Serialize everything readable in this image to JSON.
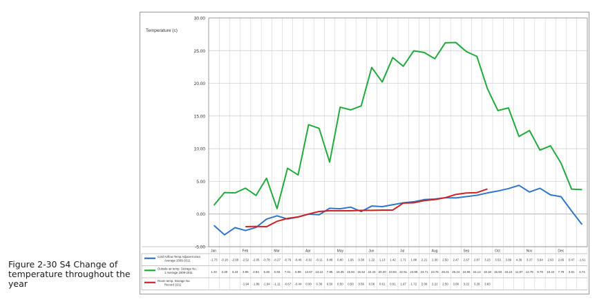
{
  "caption": "Figure 2-30 S4 Change of temperature throughout the year",
  "colors": {
    "series1": "#2e75c8",
    "series2": "#1faa3a",
    "series3": "#d21f1f",
    "grid": "#c9c9c9",
    "axis": "#8a8a8a"
  },
  "chart_data": {
    "type": "line",
    "ylabel": "Temperature (c)",
    "ylim": [
      -5,
      30
    ],
    "yticks": [
      "30.00",
      "25.00",
      "20.00",
      "15.00",
      "10.00",
      "5.00",
      "0.00",
      "-5.00"
    ],
    "grid": true,
    "legend": "table-below",
    "months": [
      "Jan",
      "Feb",
      "Mar",
      "Apr",
      "May",
      "Jun",
      "Jul",
      "Aug",
      "Sep",
      "Oct",
      "Nov",
      "Dec"
    ],
    "series": [
      {
        "name": "Cold Airflow Temp Adjacent area Average 2009-2011",
        "labels": [
          "-1.73",
          "-3.18",
          "-2.08",
          "-2.52",
          "-2.05",
          "-0.78",
          "-0.27",
          "-0.76",
          "-0.46",
          "-0.02",
          "-0.11",
          "0.88",
          "0.80",
          "1.06",
          "0.38",
          "1.22",
          "1.13",
          "1.42",
          "1.71",
          "1.88",
          "2.21",
          "2.30",
          "2.50",
          "2.47",
          "2.67",
          "2.87",
          "3.23",
          "3.53",
          "3.89",
          "4.39",
          "3.37",
          "3.94",
          "2.93",
          "2.65",
          "0.47",
          "-1.61"
        ],
        "values": [
          -1.73,
          -3.18,
          -2.08,
          -2.52,
          -2.05,
          -0.78,
          -0.27,
          -0.76,
          -0.46,
          -0.02,
          -0.11,
          0.88,
          0.8,
          1.06,
          0.38,
          1.22,
          1.13,
          1.42,
          1.71,
          1.88,
          2.21,
          2.3,
          2.5,
          2.47,
          2.67,
          2.87,
          3.23,
          3.53,
          3.89,
          4.39,
          3.37,
          3.94,
          2.93,
          2.65,
          0.47,
          -1.61
        ]
      },
      {
        "name": "Outside air temp. Storage No. 1 Average 2009-2011",
        "labels": [
          "1.34",
          "3.29",
          "3.23",
          "3.96",
          "2.84",
          "5.48",
          "0.83",
          "7.01",
          "5.98",
          "13.67",
          "13.12",
          "7.95",
          "16.35",
          "15.94",
          "16.54",
          "22.43",
          "20.20",
          "23.94",
          "22.61",
          "24.98",
          "24.71",
          "23.76",
          "26.21",
          "26.24",
          "24.86",
          "24.12",
          "19.18",
          "15.83",
          "16.24",
          "11.87",
          "12.78",
          "9.78",
          "10.44",
          "7.79",
          "3.81",
          "3.74"
        ],
        "values": [
          1.34,
          3.29,
          3.23,
          3.96,
          2.84,
          5.48,
          0.83,
          7.01,
          5.98,
          13.67,
          13.12,
          7.95,
          16.35,
          15.94,
          16.54,
          22.43,
          20.2,
          23.94,
          22.61,
          24.98,
          24.71,
          23.76,
          26.21,
          26.24,
          24.86,
          24.12,
          19.18,
          15.83,
          16.24,
          11.87,
          12.78,
          9.78,
          10.44,
          7.79,
          3.81,
          3.74
        ]
      },
      {
        "name": "Room temp. Storage No. Record 1911",
        "labels": [
          "",
          "",
          "",
          "-1.94",
          "-1.89",
          "-1.94",
          "-1.11",
          "-0.67",
          "-0.44",
          "0.00",
          "0.39",
          "0.50",
          "0.50",
          "0.50",
          "0.56",
          "0.56",
          "0.61",
          "0.61",
          "1.67",
          "1.72",
          "2.06",
          "2.22",
          "2.50",
          "3.00",
          "3.22",
          "3.28",
          "3.83",
          "",
          "",
          "",
          "",
          "",
          "",
          "",
          "",
          ""
        ],
        "values": [
          null,
          null,
          null,
          -1.94,
          -1.89,
          -1.94,
          -1.11,
          -0.67,
          -0.44,
          0.0,
          0.39,
          0.5,
          0.5,
          0.5,
          0.56,
          0.56,
          0.61,
          0.61,
          1.67,
          1.72,
          2.06,
          2.22,
          2.5,
          3.0,
          3.22,
          3.28,
          3.83,
          null,
          null,
          null,
          null,
          null,
          null,
          null,
          null,
          null
        ]
      }
    ]
  }
}
